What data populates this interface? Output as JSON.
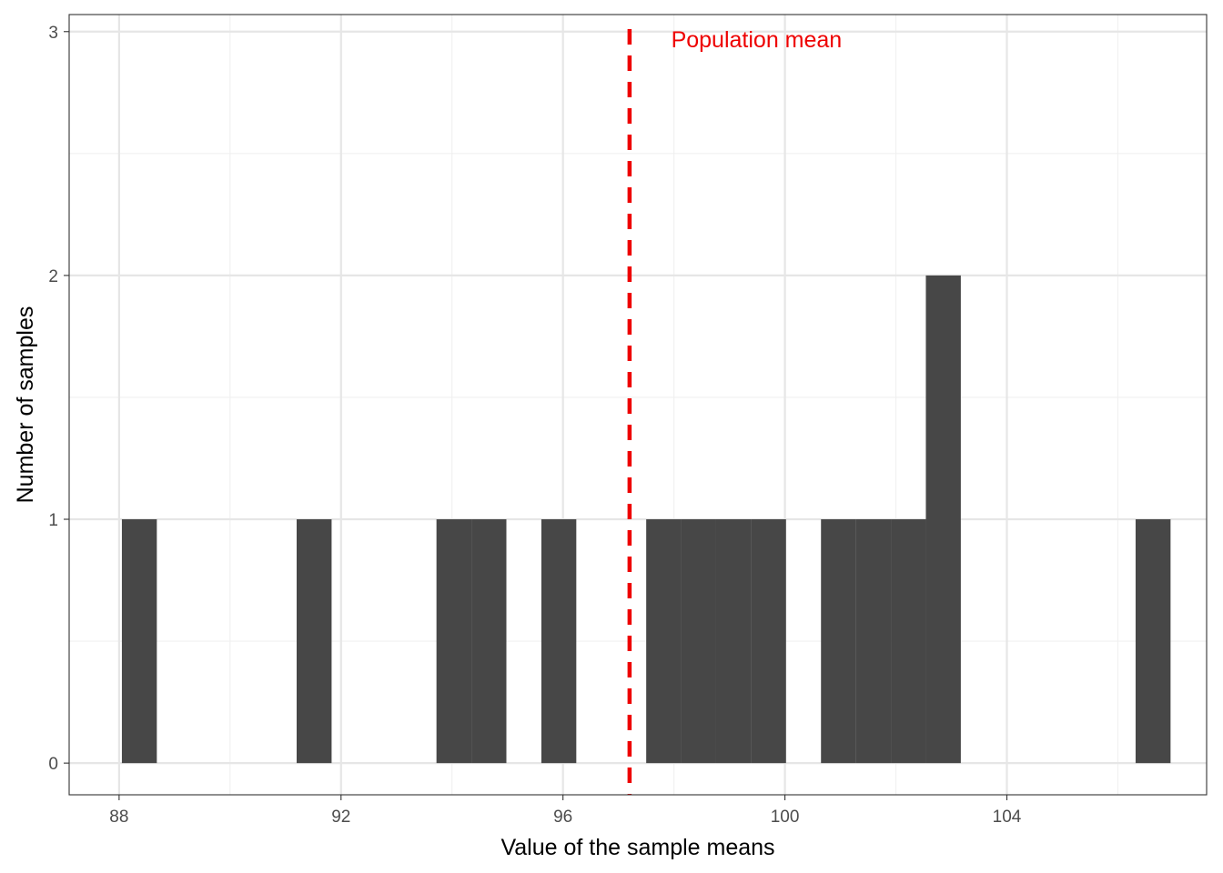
{
  "chart_data": {
    "type": "bar",
    "subtype": "histogram",
    "xlabel": "Value of the sample means",
    "ylabel": "Number of samples",
    "xlim": [
      87.1,
      107.6
    ],
    "ylim": [
      -0.13,
      3.07
    ],
    "x_ticks": [
      88,
      92,
      96,
      100,
      104
    ],
    "x_minor_ticks": [
      90,
      94,
      98,
      102,
      106
    ],
    "y_ticks": [
      0,
      1,
      2,
      3
    ],
    "y_minor_ticks": [
      0.5,
      1.5,
      2.5
    ],
    "bin_width": 0.63,
    "bins": [
      {
        "x0": 88.05,
        "x1": 88.68,
        "count": 1
      },
      {
        "x0": 91.2,
        "x1": 91.83,
        "count": 1
      },
      {
        "x0": 93.72,
        "x1": 94.35,
        "count": 1
      },
      {
        "x0": 94.35,
        "x1": 94.98,
        "count": 1
      },
      {
        "x0": 95.61,
        "x1": 96.24,
        "count": 1
      },
      {
        "x0": 97.5,
        "x1": 98.13,
        "count": 1
      },
      {
        "x0": 98.13,
        "x1": 98.76,
        "count": 1
      },
      {
        "x0": 98.76,
        "x1": 99.39,
        "count": 1
      },
      {
        "x0": 99.39,
        "x1": 100.02,
        "count": 1
      },
      {
        "x0": 100.65,
        "x1": 101.28,
        "count": 1
      },
      {
        "x0": 101.28,
        "x1": 101.91,
        "count": 1
      },
      {
        "x0": 101.91,
        "x1": 102.54,
        "count": 1
      },
      {
        "x0": 102.54,
        "x1": 103.17,
        "count": 2
      },
      {
        "x0": 106.32,
        "x1": 106.95,
        "count": 1
      }
    ],
    "reference_line": {
      "x": 97.2,
      "label": "Population mean",
      "label_x": 97.95,
      "label_y": 2.97,
      "style": "dashed",
      "color": "#ee0000"
    },
    "grid": true,
    "legend": "none",
    "colors": {
      "bar": "#474747",
      "grid_major": "#e6e6e6",
      "grid_minor": "#f0f0f0",
      "axis_text": "#4d4d4d",
      "panel_border": "#333333"
    }
  }
}
